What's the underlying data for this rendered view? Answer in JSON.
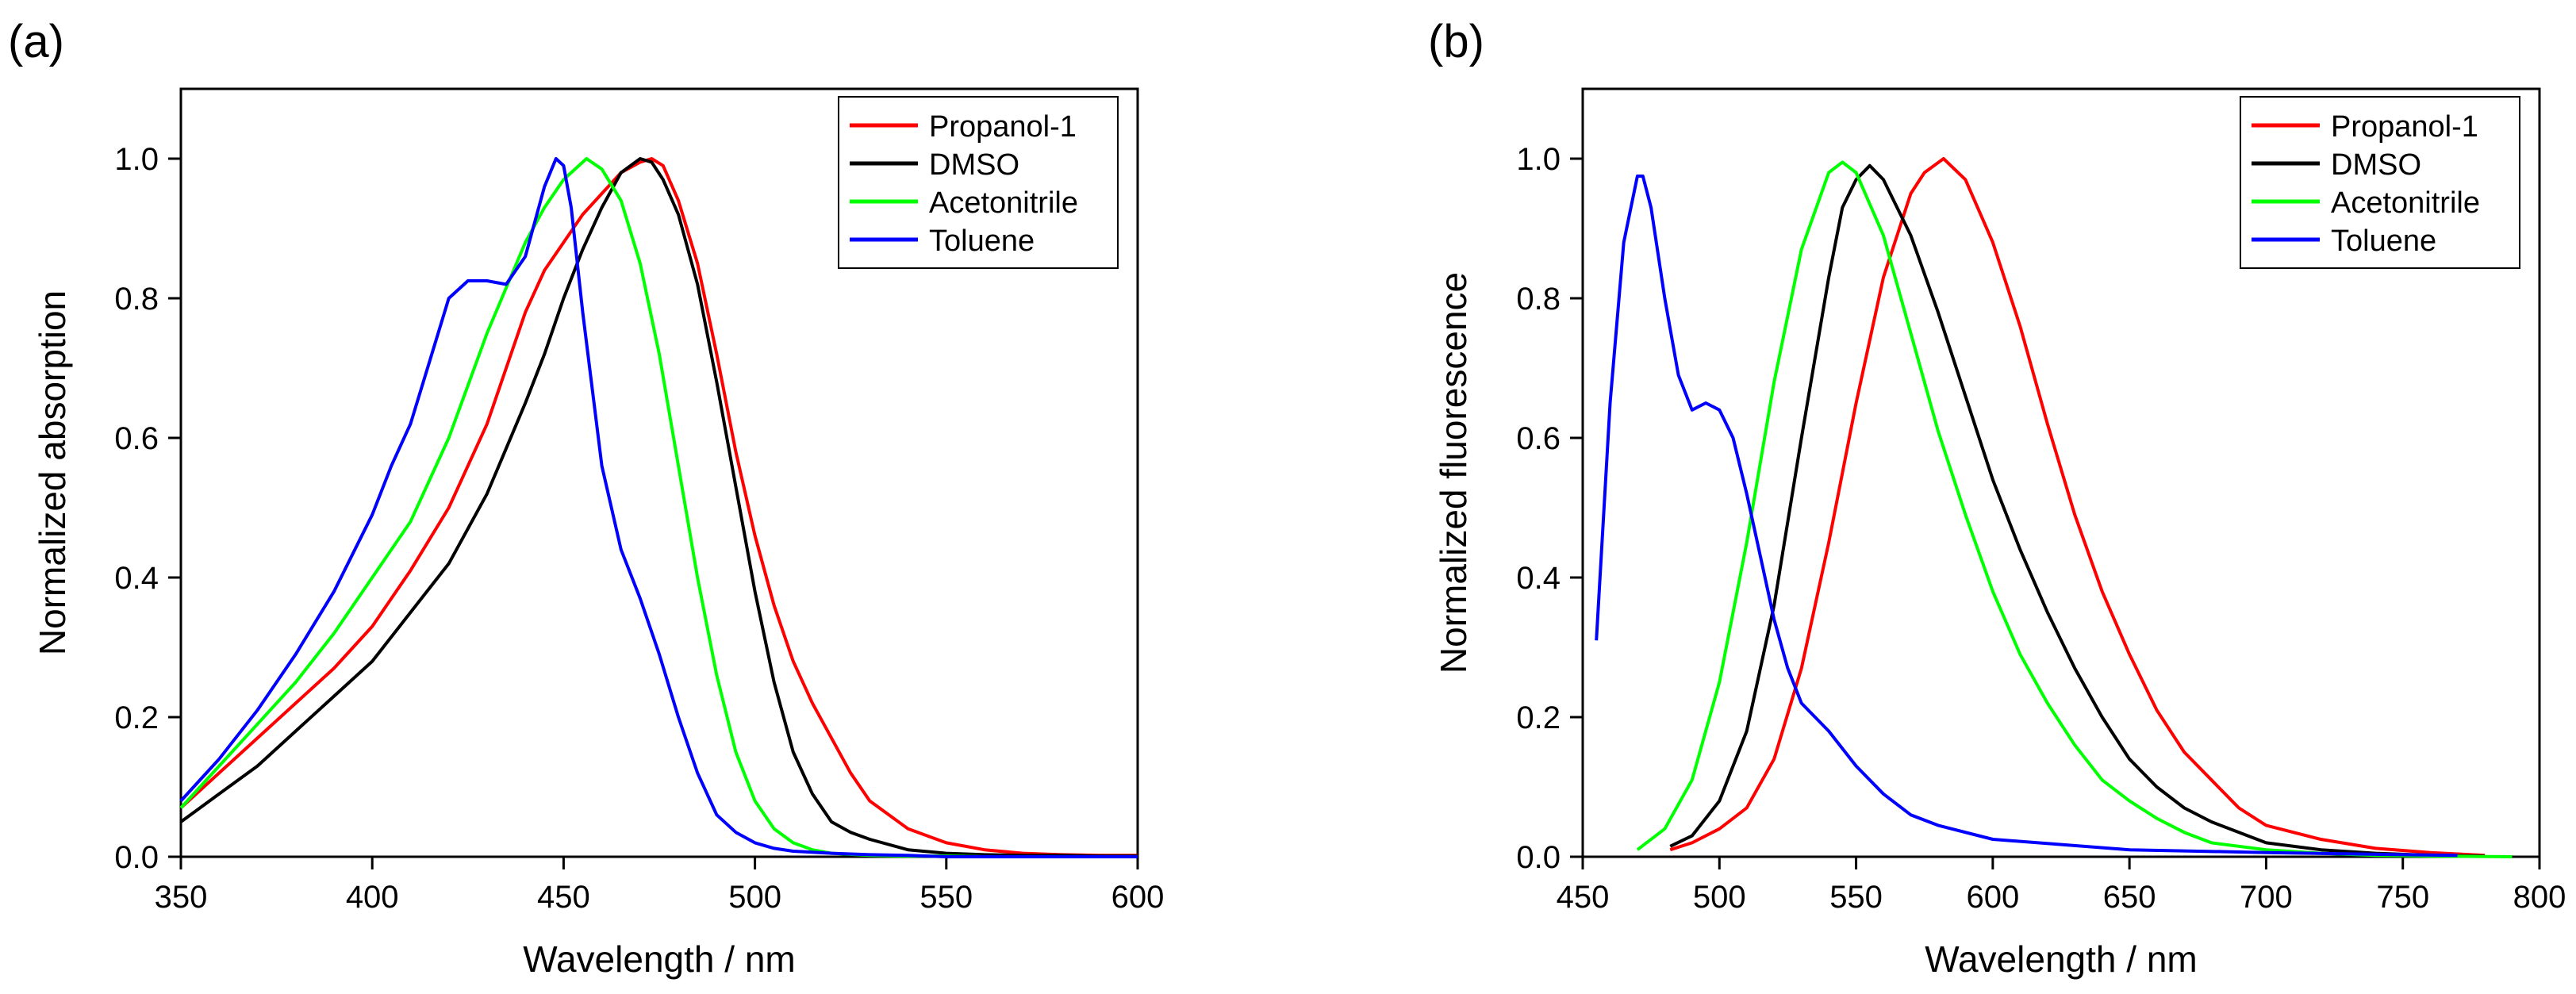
{
  "panels": [
    {
      "panel_label": "(a)",
      "chart_data": {
        "type": "line",
        "title": "",
        "xlabel": "Wavelength / nm",
        "ylabel": "Normalized absorption",
        "xlim": [
          350,
          600
        ],
        "ylim": [
          0,
          1.1
        ],
        "xticks": [
          350,
          400,
          450,
          500,
          550,
          600
        ],
        "yticks": [
          0.0,
          0.2,
          0.4,
          0.6,
          0.8,
          1.0
        ],
        "xtick_labels": [
          "350",
          "400",
          "450",
          "500",
          "550",
          "600"
        ],
        "ytick_labels": [
          "0.0",
          "0.2",
          "0.4",
          "0.6",
          "0.8",
          "1.0"
        ],
        "grid": false,
        "legend_position": "top-right",
        "series": [
          {
            "name": "Propanol-1",
            "color": "#ff0000",
            "x": [
              350,
              360,
              370,
              380,
              390,
              400,
              410,
              420,
              430,
              440,
              445,
              450,
              455,
              460,
              465,
              470,
              473,
              476,
              480,
              485,
              490,
              495,
              500,
              505,
              510,
              515,
              520,
              525,
              530,
              540,
              550,
              560,
              570,
              580,
              590,
              600
            ],
            "y": [
              0.07,
              0.12,
              0.17,
              0.22,
              0.27,
              0.33,
              0.41,
              0.5,
              0.62,
              0.78,
              0.84,
              0.88,
              0.92,
              0.95,
              0.98,
              0.995,
              1.0,
              0.99,
              0.94,
              0.85,
              0.72,
              0.58,
              0.46,
              0.36,
              0.28,
              0.22,
              0.17,
              0.12,
              0.08,
              0.04,
              0.02,
              0.01,
              0.005,
              0.003,
              0.002,
              0.002
            ]
          },
          {
            "name": "DMSO",
            "color": "#000000",
            "x": [
              350,
              360,
              370,
              380,
              390,
              400,
              410,
              420,
              430,
              440,
              445,
              450,
              455,
              460,
              465,
              470,
              473,
              476,
              480,
              485,
              490,
              495,
              500,
              505,
              510,
              515,
              520,
              525,
              530,
              540,
              550,
              560,
              570,
              580,
              590,
              600
            ],
            "y": [
              0.05,
              0.09,
              0.13,
              0.18,
              0.23,
              0.28,
              0.35,
              0.42,
              0.52,
              0.65,
              0.72,
              0.8,
              0.87,
              0.93,
              0.98,
              1.0,
              0.995,
              0.97,
              0.92,
              0.82,
              0.68,
              0.53,
              0.38,
              0.25,
              0.15,
              0.09,
              0.05,
              0.035,
              0.025,
              0.01,
              0.005,
              0.003,
              0.002,
              0.002,
              0.001,
              0.001
            ]
          },
          {
            "name": "Acetonitrile",
            "color": "#00ff00",
            "x": [
              350,
              360,
              370,
              380,
              390,
              400,
              410,
              420,
              430,
              440,
              445,
              450,
              456,
              460,
              465,
              470,
              475,
              480,
              485,
              490,
              495,
              500,
              505,
              510,
              515,
              520,
              530,
              540,
              550,
              560,
              570,
              580,
              590,
              600
            ],
            "y": [
              0.07,
              0.13,
              0.19,
              0.25,
              0.32,
              0.4,
              0.48,
              0.6,
              0.75,
              0.88,
              0.93,
              0.97,
              1.0,
              0.985,
              0.94,
              0.85,
              0.72,
              0.56,
              0.4,
              0.26,
              0.15,
              0.08,
              0.04,
              0.02,
              0.01,
              0.005,
              0.002,
              0.001,
              0.001,
              0.0,
              0.0,
              0.0,
              0.0,
              0.0
            ]
          },
          {
            "name": "Toluene",
            "color": "#0000ff",
            "x": [
              350,
              360,
              370,
              380,
              390,
              400,
              405,
              410,
              415,
              420,
              425,
              430,
              435,
              440,
              445,
              448,
              450,
              452,
              455,
              460,
              465,
              470,
              475,
              480,
              485,
              490,
              495,
              500,
              505,
              510,
              520,
              530,
              540,
              550,
              600
            ],
            "y": [
              0.08,
              0.14,
              0.21,
              0.29,
              0.38,
              0.49,
              0.56,
              0.62,
              0.71,
              0.8,
              0.825,
              0.825,
              0.82,
              0.86,
              0.96,
              1.0,
              0.99,
              0.93,
              0.78,
              0.56,
              0.44,
              0.37,
              0.29,
              0.2,
              0.12,
              0.06,
              0.035,
              0.02,
              0.012,
              0.008,
              0.005,
              0.003,
              0.002,
              0.0,
              0.0
            ]
          }
        ]
      }
    },
    {
      "panel_label": "(b)",
      "chart_data": {
        "type": "line",
        "title": "",
        "xlabel": "Wavelength / nm",
        "ylabel": "Normalized fluorescence",
        "xlim": [
          450,
          800
        ],
        "ylim": [
          0,
          1.1
        ],
        "xticks": [
          450,
          500,
          550,
          600,
          650,
          700,
          750,
          800
        ],
        "yticks": [
          0.0,
          0.2,
          0.4,
          0.6,
          0.8,
          1.0
        ],
        "xtick_labels": [
          "450",
          "500",
          "550",
          "600",
          "650",
          "700",
          "750",
          "800"
        ],
        "ytick_labels": [
          "0.0",
          "0.2",
          "0.4",
          "0.6",
          "0.8",
          "1.0"
        ],
        "grid": false,
        "legend_position": "top-right",
        "series": [
          {
            "name": "Propanol-1",
            "color": "#ff0000",
            "x": [
              482,
              490,
              500,
              510,
              520,
              530,
              540,
              550,
              560,
              570,
              575,
              582,
              590,
              600,
              610,
              620,
              630,
              640,
              650,
              660,
              670,
              680,
              690,
              700,
              720,
              740,
              760,
              780
            ],
            "y": [
              0.01,
              0.02,
              0.04,
              0.07,
              0.14,
              0.27,
              0.45,
              0.65,
              0.83,
              0.95,
              0.98,
              1.0,
              0.97,
              0.88,
              0.76,
              0.62,
              0.49,
              0.38,
              0.29,
              0.21,
              0.15,
              0.11,
              0.07,
              0.045,
              0.025,
              0.012,
              0.006,
              0.002
            ]
          },
          {
            "name": "DMSO",
            "color": "#000000",
            "x": [
              482,
              490,
              500,
              510,
              520,
              530,
              540,
              545,
              550,
              555,
              560,
              570,
              580,
              590,
              600,
              610,
              620,
              630,
              640,
              650,
              660,
              670,
              680,
              700,
              720,
              740,
              760,
              780
            ],
            "y": [
              0.015,
              0.03,
              0.08,
              0.18,
              0.36,
              0.6,
              0.83,
              0.93,
              0.97,
              0.99,
              0.97,
              0.89,
              0.78,
              0.66,
              0.54,
              0.44,
              0.35,
              0.27,
              0.2,
              0.14,
              0.1,
              0.07,
              0.05,
              0.02,
              0.01,
              0.005,
              0.002,
              0.001
            ]
          },
          {
            "name": "Acetonitrile",
            "color": "#00ff00",
            "x": [
              470,
              480,
              490,
              500,
              510,
              520,
              530,
              540,
              545,
              550,
              560,
              570,
              580,
              590,
              600,
              610,
              620,
              630,
              640,
              650,
              660,
              670,
              680,
              700,
              720,
              740,
              760,
              790
            ],
            "y": [
              0.01,
              0.04,
              0.11,
              0.25,
              0.45,
              0.68,
              0.87,
              0.98,
              0.995,
              0.98,
              0.89,
              0.75,
              0.61,
              0.49,
              0.38,
              0.29,
              0.22,
              0.16,
              0.11,
              0.08,
              0.055,
              0.035,
              0.02,
              0.01,
              0.005,
              0.002,
              0.001,
              0.0
            ]
          },
          {
            "name": "Toluene",
            "color": "#0000ff",
            "x": [
              455,
              460,
              465,
              470,
              472,
              475,
              480,
              485,
              490,
              495,
              500,
              505,
              510,
              515,
              520,
              525,
              530,
              540,
              550,
              560,
              570,
              580,
              600,
              650,
              700,
              750,
              770
            ],
            "y": [
              0.31,
              0.65,
              0.88,
              0.975,
              0.975,
              0.93,
              0.8,
              0.69,
              0.64,
              0.65,
              0.64,
              0.6,
              0.52,
              0.43,
              0.34,
              0.27,
              0.22,
              0.18,
              0.13,
              0.09,
              0.06,
              0.045,
              0.025,
              0.01,
              0.006,
              0.003,
              0.002
            ]
          }
        ]
      }
    }
  ]
}
